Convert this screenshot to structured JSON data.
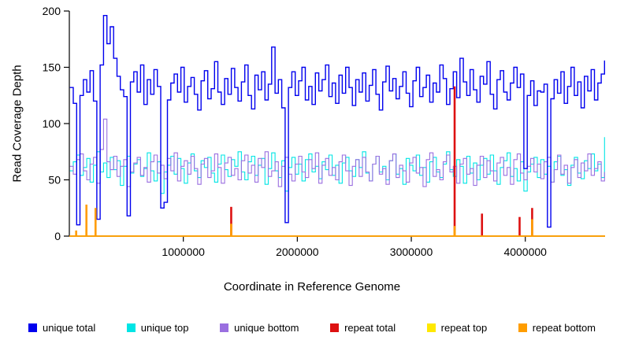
{
  "figure": {
    "title": "",
    "xlabel": "Coordinate in Reference Genome",
    "ylabel": "Read Coverage Depth"
  },
  "chart_data": {
    "type": "line",
    "title": "",
    "xlabel": "Coordinate in Reference Genome",
    "ylabel": "Read Coverage Depth",
    "xlim": [
      0,
      4700000
    ],
    "ylim": [
      0,
      200
    ],
    "x_ticks": [
      1000000,
      2000000,
      3000000,
      4000000
    ],
    "x_tick_labels": [
      "1000000",
      "2000000",
      "3000000",
      "4000000"
    ],
    "y_ticks": [
      0,
      50,
      100,
      150,
      200
    ],
    "y_tick_labels": [
      "0",
      "50",
      "100",
      "150",
      "200"
    ],
    "grid": false,
    "legend_position": "bottom",
    "x_start": 5000,
    "x_step": 29500,
    "series": [
      {
        "name": "unique total",
        "color": "#0000EE",
        "type": "step",
        "values": [
          132,
          118,
          10,
          125,
          139,
          128,
          147,
          120,
          15,
          152,
          196,
          171,
          186,
          158,
          142,
          130,
          124,
          18,
          137,
          146,
          128,
          152,
          117,
          139,
          126,
          148,
          133,
          25,
          30,
          121,
          136,
          144,
          128,
          150,
          119,
          133,
          141,
          126,
          112,
          138,
          147,
          122,
          131,
          155,
          128,
          117,
          140,
          126,
          149,
          132,
          120,
          137,
          152,
          125,
          113,
          143,
          130,
          146,
          121,
          135,
          168,
          127,
          139,
          114,
          12,
          132,
          146,
          125,
          138,
          150,
          121,
          133,
          117,
          145,
          129,
          139,
          152,
          124,
          136,
          118,
          143,
          127,
          150,
          132,
          116,
          139,
          128,
          145,
          120,
          134,
          148,
          126,
          112,
          137,
          151,
          129,
          140,
          122,
          133,
          146,
          127,
          115,
          138,
          150,
          124,
          132,
          143,
          119,
          136,
          128,
          152,
          140,
          117,
          131,
          146,
          123,
          158,
          137,
          125,
          148,
          130,
          119,
          142,
          135,
          155,
          126,
          113,
          139,
          147,
          128,
          121,
          136,
          150,
          132,
          144,
          60,
          125,
          138,
          116,
          129,
          128,
          135,
          8,
          122,
          139,
          127,
          146,
          118,
          133,
          150,
          125,
          137,
          114,
          142,
          129,
          148,
          121,
          136,
          144,
          156
        ]
      },
      {
        "name": "unique top",
        "color": "#00E5E5",
        "type": "step",
        "values": [
          58,
          66,
          72,
          54,
          61,
          69,
          48,
          63,
          75,
          57,
          65,
          52,
          70,
          59,
          67,
          45,
          62,
          71,
          56,
          64,
          68,
          53,
          60,
          74,
          58,
          49,
          66,
          38,
          57,
          63,
          71,
          55,
          69,
          60,
          47,
          65,
          73,
          58,
          52,
          67,
          61,
          70,
          56,
          48,
          64,
          72,
          59,
          53,
          68,
          62,
          75,
          57,
          50,
          66,
          71,
          54,
          63,
          69,
          46,
          60,
          74,
          58,
          52,
          67,
          40,
          61,
          70,
          55,
          64,
          49,
          68,
          73,
          57,
          62,
          51,
          66,
          59,
          72,
          54,
          63,
          47,
          65,
          70,
          58,
          53,
          68,
          61,
          75,
          56,
          49,
          64,
          71,
          57,
          62,
          50,
          67,
          73,
          55,
          60,
          46,
          69,
          63,
          58,
          72,
          54,
          61,
          48,
          66,
          70,
          57,
          52,
          64,
          75,
          59,
          53,
          68,
          62,
          47,
          71,
          56,
          65,
          50,
          63,
          69,
          55,
          72,
          58,
          46,
          61,
          67,
          74,
          53,
          60,
          49,
          66,
          40,
          57,
          64,
          70,
          52,
          68,
          55,
          62,
          48,
          66,
          71,
          54,
          59,
          45,
          63,
          70,
          56,
          51,
          67,
          60,
          73,
          58,
          64,
          52,
          88
        ]
      },
      {
        "name": "unique bottom",
        "color": "#9A6FE0",
        "type": "step",
        "values": [
          62,
          55,
          68,
          73,
          58,
          50,
          64,
          70,
          47,
          77,
          104,
          66,
          59,
          71,
          53,
          62,
          68,
          44,
          57,
          65,
          70,
          54,
          61,
          48,
          66,
          72,
          56,
          63,
          51,
          69,
          58,
          74,
          49,
          62,
          67,
          55,
          71,
          60,
          46,
          64,
          69,
          52,
          58,
          73,
          61,
          47,
          65,
          70,
          54,
          60,
          50,
          67,
          72,
          56,
          63,
          48,
          69,
          61,
          75,
          53,
          58,
          66,
          44,
          62,
          70,
          55,
          49,
          64,
          71,
          57,
          52,
          68,
          60,
          74,
          47,
          63,
          69,
          54,
          61,
          50,
          66,
          72,
          58,
          45,
          62,
          68,
          53,
          70,
          57,
          49,
          64,
          71,
          55,
          60,
          46,
          67,
          73,
          52,
          63,
          58,
          48,
          65,
          70,
          56,
          61,
          44,
          68,
          74,
          53,
          59,
          50,
          66,
          72,
          57,
          62,
          47,
          64,
          69,
          55,
          60,
          45,
          63,
          71,
          52,
          67,
          58,
          49,
          65,
          70,
          54,
          61,
          46,
          68,
          73,
          56,
          50,
          62,
          69,
          57,
          64,
          51,
          66,
          70,
          48,
          59,
          72,
          55,
          63,
          47,
          61,
          68,
          52,
          65,
          58,
          73,
          54,
          60,
          66,
          49,
          57
        ]
      },
      {
        "name": "repeat total",
        "color": "#DD1111",
        "type": "spikes",
        "baseline": 0,
        "spikes": [
          {
            "x": 1420000,
            "v": 26
          },
          {
            "x": 3380000,
            "v": 133
          },
          {
            "x": 3620000,
            "v": 20
          },
          {
            "x": 3950000,
            "v": 17
          },
          {
            "x": 4060000,
            "v": 25
          }
        ]
      },
      {
        "name": "repeat top",
        "color": "#FFE800",
        "type": "spikes",
        "baseline": 0,
        "spikes": [
          {
            "x": 150000,
            "v": 6
          },
          {
            "x": 3380000,
            "v": 5
          }
        ]
      },
      {
        "name": "repeat bottom",
        "color": "#FF9D00",
        "type": "spikes",
        "baseline": 0,
        "spikes": [
          {
            "x": 60000,
            "v": 5
          },
          {
            "x": 150000,
            "v": 28
          },
          {
            "x": 230000,
            "v": 25
          },
          {
            "x": 1420000,
            "v": 11
          },
          {
            "x": 3380000,
            "v": 9
          },
          {
            "x": 4060000,
            "v": 15
          }
        ]
      }
    ]
  }
}
